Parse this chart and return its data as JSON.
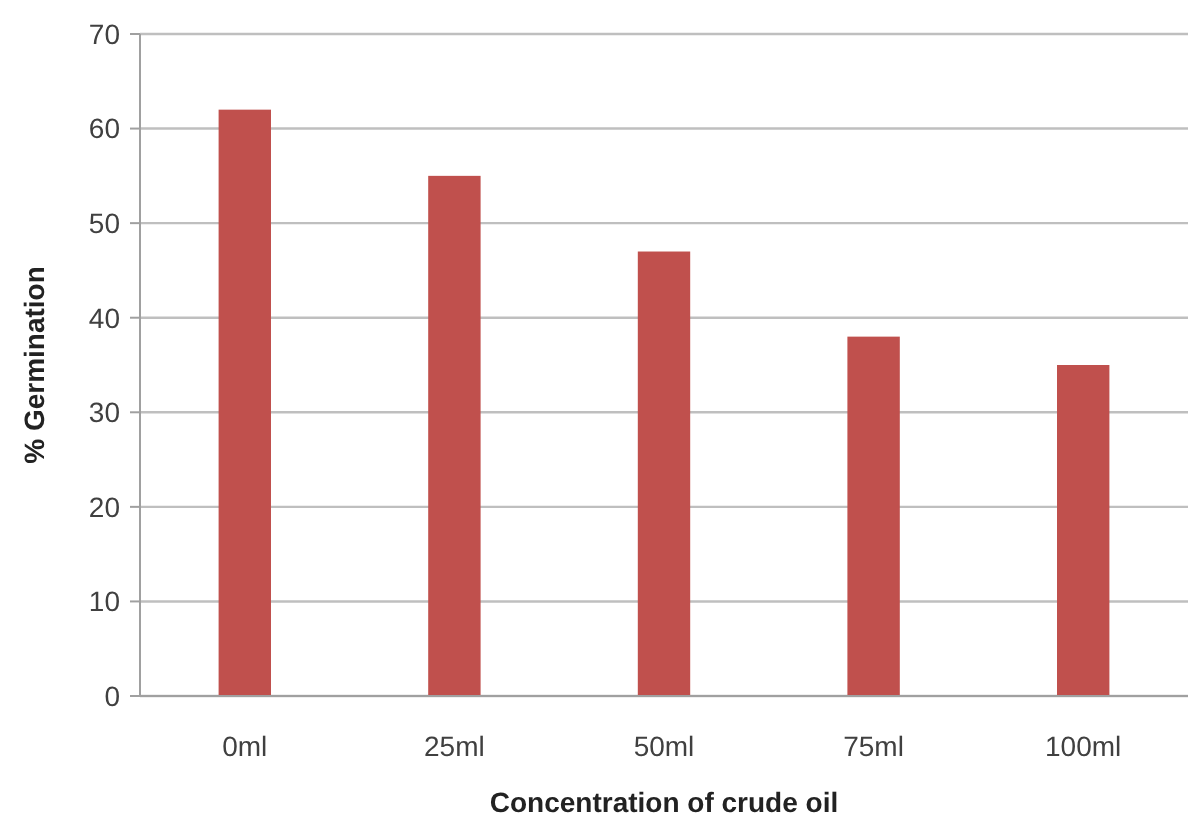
{
  "chart_data": {
    "type": "bar",
    "xlabel": "Concentration of crude oil",
    "ylabel": "% Germination",
    "categories": [
      "0ml",
      "25ml",
      "50ml",
      "75ml",
      "100ml"
    ],
    "values": [
      62,
      55,
      47,
      38,
      35
    ],
    "color": "#c0504d",
    "ylim": [
      0,
      70
    ],
    "yticks": [
      0,
      10,
      20,
      30,
      40,
      50,
      60,
      70
    ],
    "grid": "y"
  }
}
